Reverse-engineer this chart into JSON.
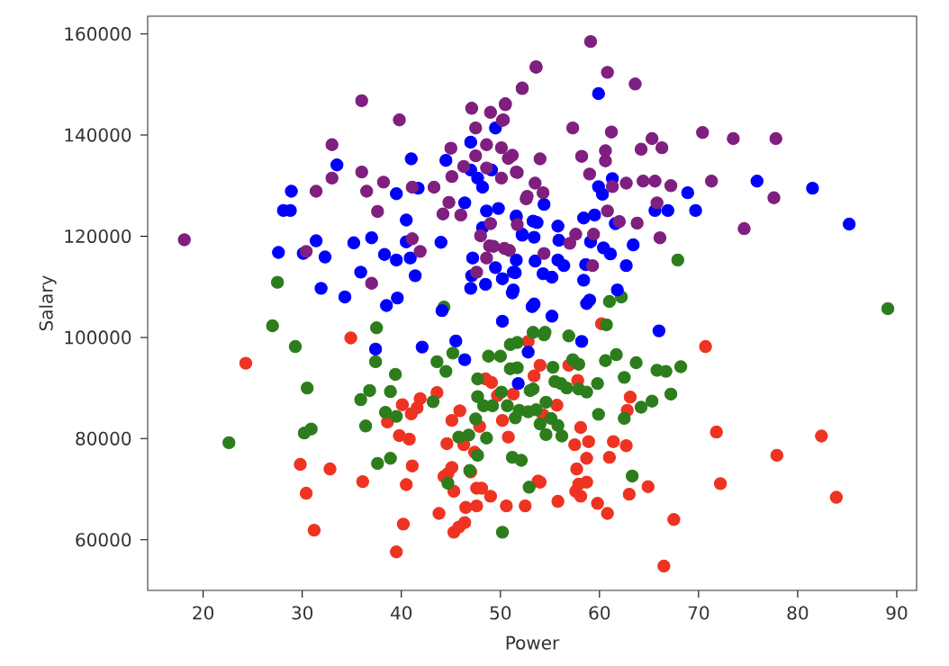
{
  "chart_data": {
    "type": "scatter",
    "xlabel": "Power",
    "ylabel": "Salary",
    "xlim": [
      14.4,
      92
    ],
    "ylim": [
      50000,
      163500
    ],
    "xticks": [
      20,
      30,
      40,
      50,
      60,
      70,
      80,
      90
    ],
    "yticks": [
      60000,
      80000,
      100000,
      120000,
      140000,
      160000
    ],
    "grid": false,
    "series": [
      {
        "color": "#ee3322",
        "x": [
          24.3,
          34.9,
          29.8,
          32.8,
          30.4,
          31.2,
          36.1,
          38.6,
          40.1,
          41,
          41.9,
          41.6,
          39.8,
          40.8,
          41.1,
          40.5,
          40.2,
          39.5,
          43.6,
          45.1,
          45.9,
          44.6,
          46.3,
          47.9,
          47.4,
          45.1,
          44.3,
          44.7,
          47,
          45.3,
          43.8,
          45.3,
          45.8,
          46.4,
          46.5,
          47.6,
          48.1,
          47.6,
          49,
          50.6,
          52.5,
          48.5,
          49.1,
          49.7,
          50.2,
          50.8,
          52.8,
          53.4,
          54,
          53.8,
          60.2,
          70.7,
          56.9,
          57.8,
          51.3,
          55.7,
          63.1,
          62.8,
          54.3,
          58.1,
          57.5,
          58.9,
          61.4,
          62.7,
          58.7,
          61,
          57.7,
          71.8,
          77.9,
          82.4,
          72.2,
          83.9,
          64.9,
          63,
          57.9,
          58.7,
          57.6,
          58.1,
          54,
          55.8,
          59.8,
          60.8,
          67.5,
          66.5
        ],
        "values": [
          94900,
          99900,
          74900,
          74000,
          69200,
          61900,
          71500,
          83300,
          86700,
          84900,
          87900,
          86100,
          80600,
          79900,
          74600,
          70900,
          63100,
          57600,
          89100,
          83600,
          85500,
          79000,
          78800,
          82400,
          77300,
          74300,
          72500,
          73100,
          73400,
          69600,
          65200,
          61500,
          62500,
          63400,
          66400,
          70200,
          70200,
          66700,
          68600,
          66700,
          66700,
          91800,
          91100,
          88500,
          83600,
          80300,
          99200,
          92400,
          94500,
          71600,
          102700,
          98200,
          94500,
          91500,
          88800,
          86600,
          88200,
          85600,
          84700,
          82200,
          78800,
          79400,
          79400,
          78600,
          76100,
          76300,
          74000,
          81300,
          76700,
          80500,
          71100,
          68400,
          70500,
          69000,
          71000,
          71400,
          69600,
          68600,
          71400,
          67600,
          67200,
          65200,
          64000,
          54800
        ]
      },
      {
        "color": "#2d7d1d",
        "x": [
          27.5,
          67.9,
          89.1,
          61,
          62.2,
          27,
          29.3,
          37.5,
          37.4,
          44.3,
          30.5,
          22.6,
          30.2,
          30.9,
          35.9,
          36.8,
          38.9,
          39.4,
          38.4,
          36.4,
          37.6,
          38.9,
          39.5,
          43.6,
          45.2,
          44.5,
          43.2,
          48.8,
          50,
          51,
          51.7,
          47.7,
          47.7,
          48.3,
          49.2,
          50.1,
          50.7,
          51.5,
          53.3,
          53.6,
          54.4,
          47.5,
          45.8,
          46.8,
          48.6,
          47.7,
          46.9,
          44.7,
          51.2,
          52.1,
          52.9,
          50.2,
          60.7,
          56.9,
          53.3,
          54.5,
          51.7,
          51,
          55.3,
          57.3,
          57.9,
          61.7,
          60.6,
          63.7,
          65.8,
          66.7,
          68.2,
          62.5,
          59.8,
          55.5,
          56.1,
          56.7,
          57.9,
          58.7,
          53,
          51.9,
          52.8,
          54.6,
          67.2,
          65.3,
          64.2,
          59.9,
          62.5,
          54,
          55.1,
          55.8,
          54.6,
          56.2,
          63.3
        ],
        "values": [
          110900,
          115300,
          105700,
          107100,
          108000,
          102300,
          98200,
          101900,
          95200,
          106000,
          90000,
          79200,
          81100,
          81900,
          87700,
          89500,
          89300,
          92700,
          85200,
          82500,
          75100,
          76100,
          84400,
          95200,
          96900,
          93300,
          87300,
          96300,
          96300,
          98600,
          94000,
          91800,
          88300,
          86500,
          86500,
          89200,
          86500,
          84100,
          89800,
          85700,
          100500,
          83900,
          80300,
          80700,
          80100,
          76700,
          73700,
          71200,
          76300,
          75700,
          70400,
          61500,
          102500,
          100300,
          101000,
          101000,
          99000,
          93800,
          94100,
          95600,
          94700,
          96600,
          95400,
          95000,
          93500,
          93300,
          94200,
          92100,
          90900,
          91300,
          90900,
          90000,
          89800,
          89200,
          89500,
          85600,
          85300,
          87200,
          88800,
          87400,
          86200,
          84800,
          84000,
          82900,
          84000,
          82600,
          80800,
          80500,
          72600
        ]
      },
      {
        "color": "#0000ff",
        "x": [
          49.5,
          47,
          41,
          44.5,
          33.5,
          47,
          47.7,
          49.1,
          28.9,
          41.7,
          39.5,
          48.2,
          28.1,
          28.8,
          46.4,
          48.6,
          49.8,
          40.5,
          51.6,
          53.3,
          48.2,
          31.4,
          35.2,
          37,
          40.5,
          44,
          52.2,
          27.6,
          30.1,
          32.3,
          38.3,
          39.5,
          40.9,
          47.2,
          49.5,
          51.3,
          35.9,
          41.4,
          47.1,
          50.2,
          31.9,
          34.3,
          47,
          48.5,
          51.2,
          38.5,
          39.6,
          53.2,
          59.9,
          61.3,
          59.9,
          60.3,
          68.9,
          75.9,
          81.5,
          85.2,
          65.6,
          66.9,
          69.7,
          54.4,
          58.4,
          59.5,
          53.7,
          55.8,
          61.6,
          51.6,
          52.2,
          53.4,
          55.9,
          59.1,
          63.4,
          60.4,
          61.1,
          51.6,
          53.5,
          55.8,
          56.4,
          58.6,
          62.7,
          51.5,
          54.3,
          55.2,
          58.4,
          51.3,
          61.8,
          53.4,
          59,
          44.1,
          50.2,
          37.4,
          42.1,
          45.5,
          46.4,
          51.8,
          55.2,
          58.7,
          58.2,
          52.8,
          66
        ],
        "values": [
          141400,
          138600,
          135300,
          135000,
          134100,
          133100,
          131500,
          133100,
          128900,
          129500,
          128400,
          129700,
          125100,
          125100,
          126600,
          125000,
          125500,
          123200,
          124000,
          123000,
          121700,
          119100,
          118700,
          119700,
          118900,
          118800,
          120200,
          116800,
          116600,
          115900,
          116400,
          115300,
          115700,
          115700,
          113800,
          112900,
          112900,
          112200,
          112200,
          111600,
          109700,
          108000,
          109700,
          110500,
          108800,
          106300,
          107800,
          106100,
          148200,
          131400,
          129800,
          128300,
          128600,
          130900,
          129500,
          122400,
          125100,
          125100,
          125100,
          126300,
          123600,
          124200,
          122700,
          122000,
          122500,
          123800,
          120400,
          119800,
          119200,
          118900,
          118300,
          117700,
          116500,
          115300,
          115100,
          115300,
          114200,
          114400,
          114200,
          112800,
          112600,
          111900,
          111300,
          109400,
          109400,
          106600,
          107400,
          105300,
          103200,
          97700,
          98100,
          99300,
          95600,
          90900,
          104200,
          106700,
          99200,
          97100,
          101300
        ]
      },
      {
        "color": "#7f1f7f",
        "x": [
          18.1,
          36,
          39.8,
          33,
          33,
          36,
          31.4,
          36.5,
          38.2,
          37.6,
          30.4,
          37,
          41.1,
          43.3,
          41.1,
          41.9,
          45,
          47.1,
          49,
          47.5,
          50.5,
          50.2,
          52.2,
          53.6,
          48.6,
          47.5,
          50.1,
          50.8,
          48.6,
          45.1,
          50.1,
          51.7,
          46.3,
          44.8,
          44.2,
          46,
          49,
          48,
          48.9,
          49.3,
          50.9,
          47.6,
          48.6,
          52.6,
          59.1,
          53.6,
          60.8,
          63.6,
          52.2,
          50.5,
          50.3,
          57.3,
          61.2,
          65.3,
          70.4,
          73.5,
          77.8,
          66.3,
          64.2,
          60.6,
          58.2,
          54,
          51.2,
          60.6,
          51.6,
          59,
          53.5,
          61.3,
          62.7,
          64.4,
          65.6,
          67.2,
          71.3,
          54.3,
          52.7,
          77.6,
          65.8,
          60.8,
          51.7,
          62,
          63.8,
          74.6,
          66.1,
          59.4,
          57.6,
          57,
          54.4,
          59.3,
          50.4
        ],
        "values": [
          119300,
          146800,
          143000,
          138100,
          131500,
          132700,
          128900,
          128900,
          130700,
          124900,
          117000,
          110700,
          129700,
          129700,
          119500,
          117000,
          137400,
          145300,
          144500,
          141400,
          146000,
          142900,
          149200,
          153400,
          138100,
          135900,
          137500,
          135400,
          133500,
          131800,
          131500,
          132600,
          133800,
          126700,
          124400,
          124200,
          122500,
          120100,
          118100,
          118000,
          117200,
          112900,
          115700,
          127400,
          158500,
          153500,
          152400,
          150100,
          149300,
          146200,
          143000,
          141400,
          140600,
          139300,
          140500,
          139300,
          139300,
          137500,
          137200,
          136900,
          135800,
          135300,
          136000,
          134900,
          132700,
          132300,
          130500,
          129800,
          130500,
          130900,
          130900,
          130000,
          130900,
          128600,
          127900,
          127600,
          126600,
          125000,
          122300,
          122900,
          122600,
          121500,
          119700,
          120400,
          120400,
          118600,
          116600,
          114200,
          117600
        ]
      }
    ]
  }
}
